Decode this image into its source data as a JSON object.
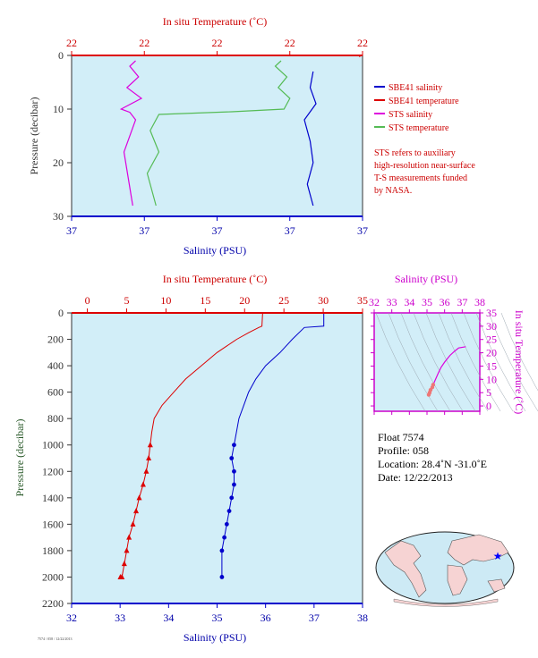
{
  "colors": {
    "plot_bg": "#d2eef8",
    "salinity_blue": "#0000cc",
    "temperature_red": "#dd0000",
    "sts_salinity": "#dd00dd",
    "sts_temperature": "#55bb55",
    "red_text": "#cc0000",
    "magenta_text": "#cc00cc"
  },
  "chart_data": [
    {
      "id": "surface-profile",
      "type": "line",
      "title_top_axis": "In situ Temperature (˚C)",
      "xlabel": "Salinity (PSU)",
      "ylabel": "Pressure (decibar)",
      "top_tick_labels": [
        "22",
        "22",
        "22",
        "22",
        "22"
      ],
      "bottom_tick_labels": [
        "37",
        "37",
        "37",
        "37",
        "37"
      ],
      "y_tick_labels": [
        "0",
        "10",
        "20",
        "30"
      ],
      "ylim": [
        30,
        0
      ],
      "series": [
        {
          "name": "SBE41 salinity",
          "color": "#0000cc",
          "x": [
            0.83,
            0.82,
            0.84,
            0.8,
            0.82,
            0.83,
            0.81,
            0.83
          ],
          "y": [
            3,
            6,
            9,
            12,
            16,
            20,
            24,
            28
          ]
        },
        {
          "name": "SBE41 temperature",
          "color": "#dd0000",
          "x": [
            0.99,
            0.99
          ],
          "y": [
            0.1,
            0.3
          ]
        },
        {
          "name": "STS salinity",
          "color": "#dd00dd",
          "x": [
            0.22,
            0.2,
            0.23,
            0.19,
            0.24,
            0.17,
            0.2,
            0.22,
            0.18,
            0.21
          ],
          "y": [
            1,
            2,
            4,
            6,
            8,
            10,
            10.6,
            12,
            18,
            28
          ]
        },
        {
          "name": "STS temperature",
          "color": "#55bb55",
          "x": [
            0.72,
            0.7,
            0.74,
            0.71,
            0.75,
            0.73,
            0.55,
            0.3,
            0.27,
            0.3,
            0.26,
            0.29
          ],
          "y": [
            1,
            2,
            4,
            6,
            8,
            10,
            10.5,
            11,
            14,
            18,
            22,
            28
          ]
        }
      ],
      "legend_location": "right"
    },
    {
      "id": "deep-profile",
      "type": "line",
      "title_top_axis": "In situ Temperature (˚C)",
      "xlabel": "Salinity (PSU)",
      "ylabel": "Pressure (decibar)",
      "top_ticks": [
        0,
        5,
        10,
        15,
        20,
        25,
        30,
        35
      ],
      "bottom_ticks": [
        32,
        33,
        34,
        35,
        36,
        37,
        38
      ],
      "y_ticks": [
        0,
        200,
        400,
        600,
        800,
        1000,
        1200,
        1400,
        1600,
        1800,
        2000,
        2200
      ],
      "temperature_range": [
        -2,
        35
      ],
      "salinity_range": [
        32,
        38
      ],
      "ylim": [
        2200,
        0
      ],
      "series": [
        {
          "name": "Temperature",
          "color": "#dd0000",
          "marker": "triangle",
          "marker_from_pressure": 1000,
          "x": [
            22.3,
            22.2,
            21.8,
            20.5,
            19.0,
            16.5,
            14.5,
            12.5,
            11.0,
            9.5,
            8.5,
            8.2,
            8.0,
            7.8,
            7.5,
            7.1,
            6.6,
            6.2,
            5.8,
            5.3,
            5.0,
            4.7,
            4.4,
            4.2
          ],
          "y": [
            0,
            100,
            110,
            150,
            200,
            300,
            400,
            500,
            600,
            700,
            800,
            900,
            1000,
            1100,
            1200,
            1300,
            1400,
            1500,
            1600,
            1700,
            1800,
            1900,
            2000,
            2000
          ]
        },
        {
          "name": "Salinity",
          "color": "#0000cc",
          "marker": "circle",
          "marker_from_pressure": 1000,
          "x": [
            37.2,
            37.2,
            36.8,
            36.55,
            36.3,
            36.0,
            35.8,
            35.65,
            35.55,
            35.45,
            35.4,
            35.35,
            35.3,
            35.35,
            35.35,
            35.3,
            35.25,
            35.2,
            35.15,
            35.1,
            35.1
          ],
          "y": [
            0,
            100,
            110,
            200,
            300,
            400,
            500,
            600,
            700,
            800,
            900,
            1000,
            1100,
            1200,
            1300,
            1400,
            1500,
            1600,
            1700,
            1800,
            2000
          ]
        }
      ]
    },
    {
      "id": "ts-diagram",
      "type": "line",
      "title_top_axis": "Salinity (PSU)",
      "ylabel": "In situ Temperature (˚C)",
      "x_ticks": [
        32,
        33,
        34,
        35,
        36,
        37,
        38
      ],
      "y_ticks": [
        0,
        5,
        10,
        15,
        20,
        25,
        30,
        35
      ],
      "xlim": [
        32,
        38
      ],
      "ylim": [
        -2,
        35
      ],
      "series": [
        {
          "name": "T-S",
          "color": "#dd00dd",
          "x": [
            35.1,
            35.15,
            35.2,
            35.3,
            35.35,
            35.45,
            35.65,
            35.8,
            36.0,
            36.3,
            36.55,
            36.8,
            37.2
          ],
          "y": [
            4.2,
            5.0,
            6.0,
            7.0,
            8.0,
            9.5,
            12.5,
            14.5,
            16.5,
            19.0,
            20.5,
            21.8,
            22.3
          ]
        }
      ]
    }
  ],
  "legend": {
    "items": [
      {
        "label": "SBE41 salinity",
        "color": "#0000cc"
      },
      {
        "label": "SBE41 temperature",
        "color": "#dd0000"
      },
      {
        "label": "STS salinity",
        "color": "#dd00dd"
      },
      {
        "label": "STS temperature",
        "color": "#55bb55"
      }
    ],
    "note_lines": [
      "STS refers to auxiliary",
      "high-resolution near-surface",
      "T-S measurements funded",
      "by NASA."
    ]
  },
  "float_info": {
    "float": "Float  7574",
    "profile": "Profile:  058",
    "location": "Location:  28.4˚N  -31.0˚E",
    "date": "Date:  12/22/2013"
  },
  "map": {
    "marker_color": "#0000ff"
  },
  "footer_tiny_text": "7574 / 058 / 12/22/2013"
}
